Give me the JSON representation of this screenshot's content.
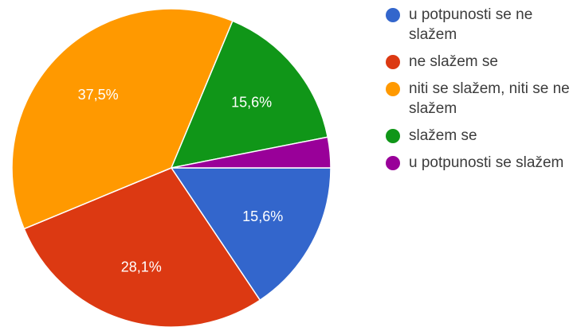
{
  "chart_data": {
    "type": "pie",
    "categories": [
      "u potpunosti se ne slažem",
      "ne slažem se",
      "niti se slažem, niti se ne slažem",
      "slažem se",
      "u potpunosti se slažem"
    ],
    "values": [
      15.6,
      28.1,
      37.5,
      15.6,
      3.1
    ],
    "colors": [
      "#3366cc",
      "#dc3912",
      "#ff9900",
      "#109618",
      "#990099"
    ],
    "data_labels": [
      "15,6%",
      "28,1%",
      "37,5%",
      "15,6%",
      ""
    ],
    "start": "3 o'clock",
    "direction": "clockwise",
    "legend_position": "right",
    "title": ""
  }
}
